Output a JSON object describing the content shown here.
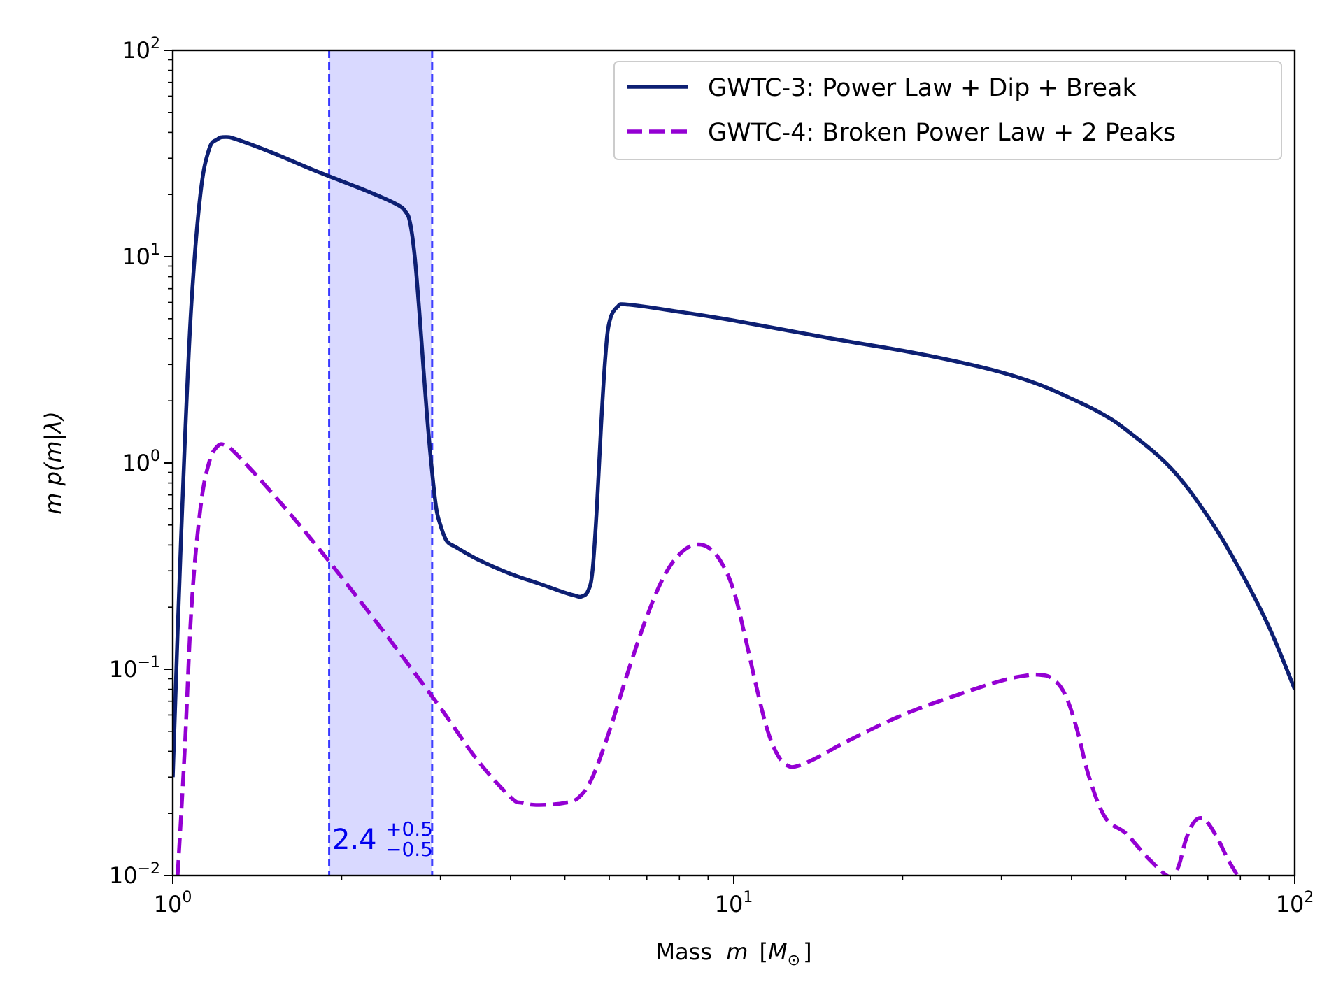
{
  "chart_data": {
    "type": "line",
    "title": "",
    "xlabel": "Mass",
    "xlabel_var": "m",
    "xlabel_unit": "M",
    "xlabel_unit_sub": "⊙",
    "ylabel": "m p(m|λ)",
    "xscale": "log",
    "yscale": "log",
    "xlim": [
      1,
      100
    ],
    "ylim": [
      0.01,
      100
    ],
    "xticks": [
      {
        "value": 1,
        "base": "10",
        "exp": "0"
      },
      {
        "value": 10,
        "base": "10",
        "exp": "1"
      },
      {
        "value": 100,
        "base": "10",
        "exp": "2"
      }
    ],
    "yticks": [
      {
        "value": 0.01,
        "base": "10",
        "exp": "−2"
      },
      {
        "value": 0.1,
        "base": "10",
        "exp": "−1"
      },
      {
        "value": 1,
        "base": "10",
        "exp": "0"
      },
      {
        "value": 10,
        "base": "10",
        "exp": "1"
      },
      {
        "value": 100,
        "base": "10",
        "exp": "2"
      }
    ],
    "band": {
      "low": 1.9,
      "high": 2.9,
      "color": "#0000ff",
      "label_main": "2.4",
      "label_sup": "+0.5",
      "label_sub": "−0.5"
    },
    "legend_position": "top-right",
    "series": [
      {
        "name": "GWTC-3: Power Law + Dip + Break",
        "color": "#0d1f73",
        "style": "solid",
        "x": [
          1.0,
          1.02,
          1.05,
          1.08,
          1.12,
          1.16,
          1.2,
          1.24,
          1.3,
          1.5,
          1.8,
          2.2,
          2.5,
          2.6,
          2.65,
          2.7,
          2.75,
          2.8,
          2.85,
          2.9,
          2.95,
          3.0,
          3.05,
          3.1,
          3.2,
          3.5,
          4.0,
          4.5,
          5.0,
          5.2,
          5.35,
          5.5,
          5.6,
          5.7,
          5.8,
          5.9,
          6.0,
          6.2,
          6.5,
          8.0,
          10.0,
          15.0,
          20.0,
          25.0,
          30.0,
          35.0,
          40.0,
          45.0,
          50.0,
          60.0,
          70.0,
          80.0,
          90.0,
          100.0
        ],
        "y": [
          0.03,
          0.15,
          1.2,
          6.0,
          20.0,
          33.0,
          37.0,
          38.0,
          37.0,
          32.0,
          26.0,
          21.0,
          18.0,
          16.5,
          14.5,
          10.0,
          5.5,
          2.8,
          1.5,
          0.9,
          0.6,
          0.5,
          0.44,
          0.41,
          0.39,
          0.34,
          0.29,
          0.26,
          0.235,
          0.228,
          0.225,
          0.24,
          0.3,
          0.6,
          1.5,
          3.2,
          4.8,
          5.7,
          5.85,
          5.4,
          4.9,
          4.0,
          3.5,
          3.1,
          2.75,
          2.4,
          2.05,
          1.75,
          1.45,
          0.95,
          0.55,
          0.3,
          0.16,
          0.08
        ]
      },
      {
        "name": "GWTC-4: Broken Power Law + 2 Peaks",
        "color": "#9400d3",
        "style": "dashed",
        "x": [
          1.02,
          1.05,
          1.08,
          1.12,
          1.16,
          1.2,
          1.24,
          1.3,
          1.5,
          1.8,
          2.2,
          2.6,
          3.0,
          3.5,
          4.0,
          4.2,
          4.5,
          5.0,
          5.3,
          5.6,
          6.0,
          6.5,
          7.0,
          7.5,
          8.0,
          8.5,
          9.0,
          9.5,
          10.0,
          10.5,
          11.0,
          11.5,
          12.0,
          12.5,
          13.0,
          14.0,
          16.0,
          20.0,
          25.0,
          30.0,
          33.0,
          35.0,
          37.0,
          39.0,
          41.0,
          43.0,
          46.0,
          50.0,
          55.0,
          60.0,
          62.0,
          64.0,
          66.0,
          68.0,
          70.0,
          73.0,
          76.0,
          80.0
        ],
        "y": [
          0.01,
          0.04,
          0.2,
          0.6,
          1.0,
          1.2,
          1.22,
          1.1,
          0.72,
          0.4,
          0.2,
          0.11,
          0.065,
          0.036,
          0.024,
          0.0225,
          0.022,
          0.0225,
          0.024,
          0.03,
          0.05,
          0.1,
          0.18,
          0.28,
          0.36,
          0.4,
          0.39,
          0.33,
          0.24,
          0.14,
          0.08,
          0.05,
          0.038,
          0.034,
          0.034,
          0.037,
          0.045,
          0.06,
          0.075,
          0.088,
          0.093,
          0.094,
          0.09,
          0.075,
          0.05,
          0.03,
          0.019,
          0.016,
          0.012,
          0.0098,
          0.011,
          0.015,
          0.018,
          0.019,
          0.018,
          0.015,
          0.012,
          0.0095
        ]
      }
    ]
  }
}
